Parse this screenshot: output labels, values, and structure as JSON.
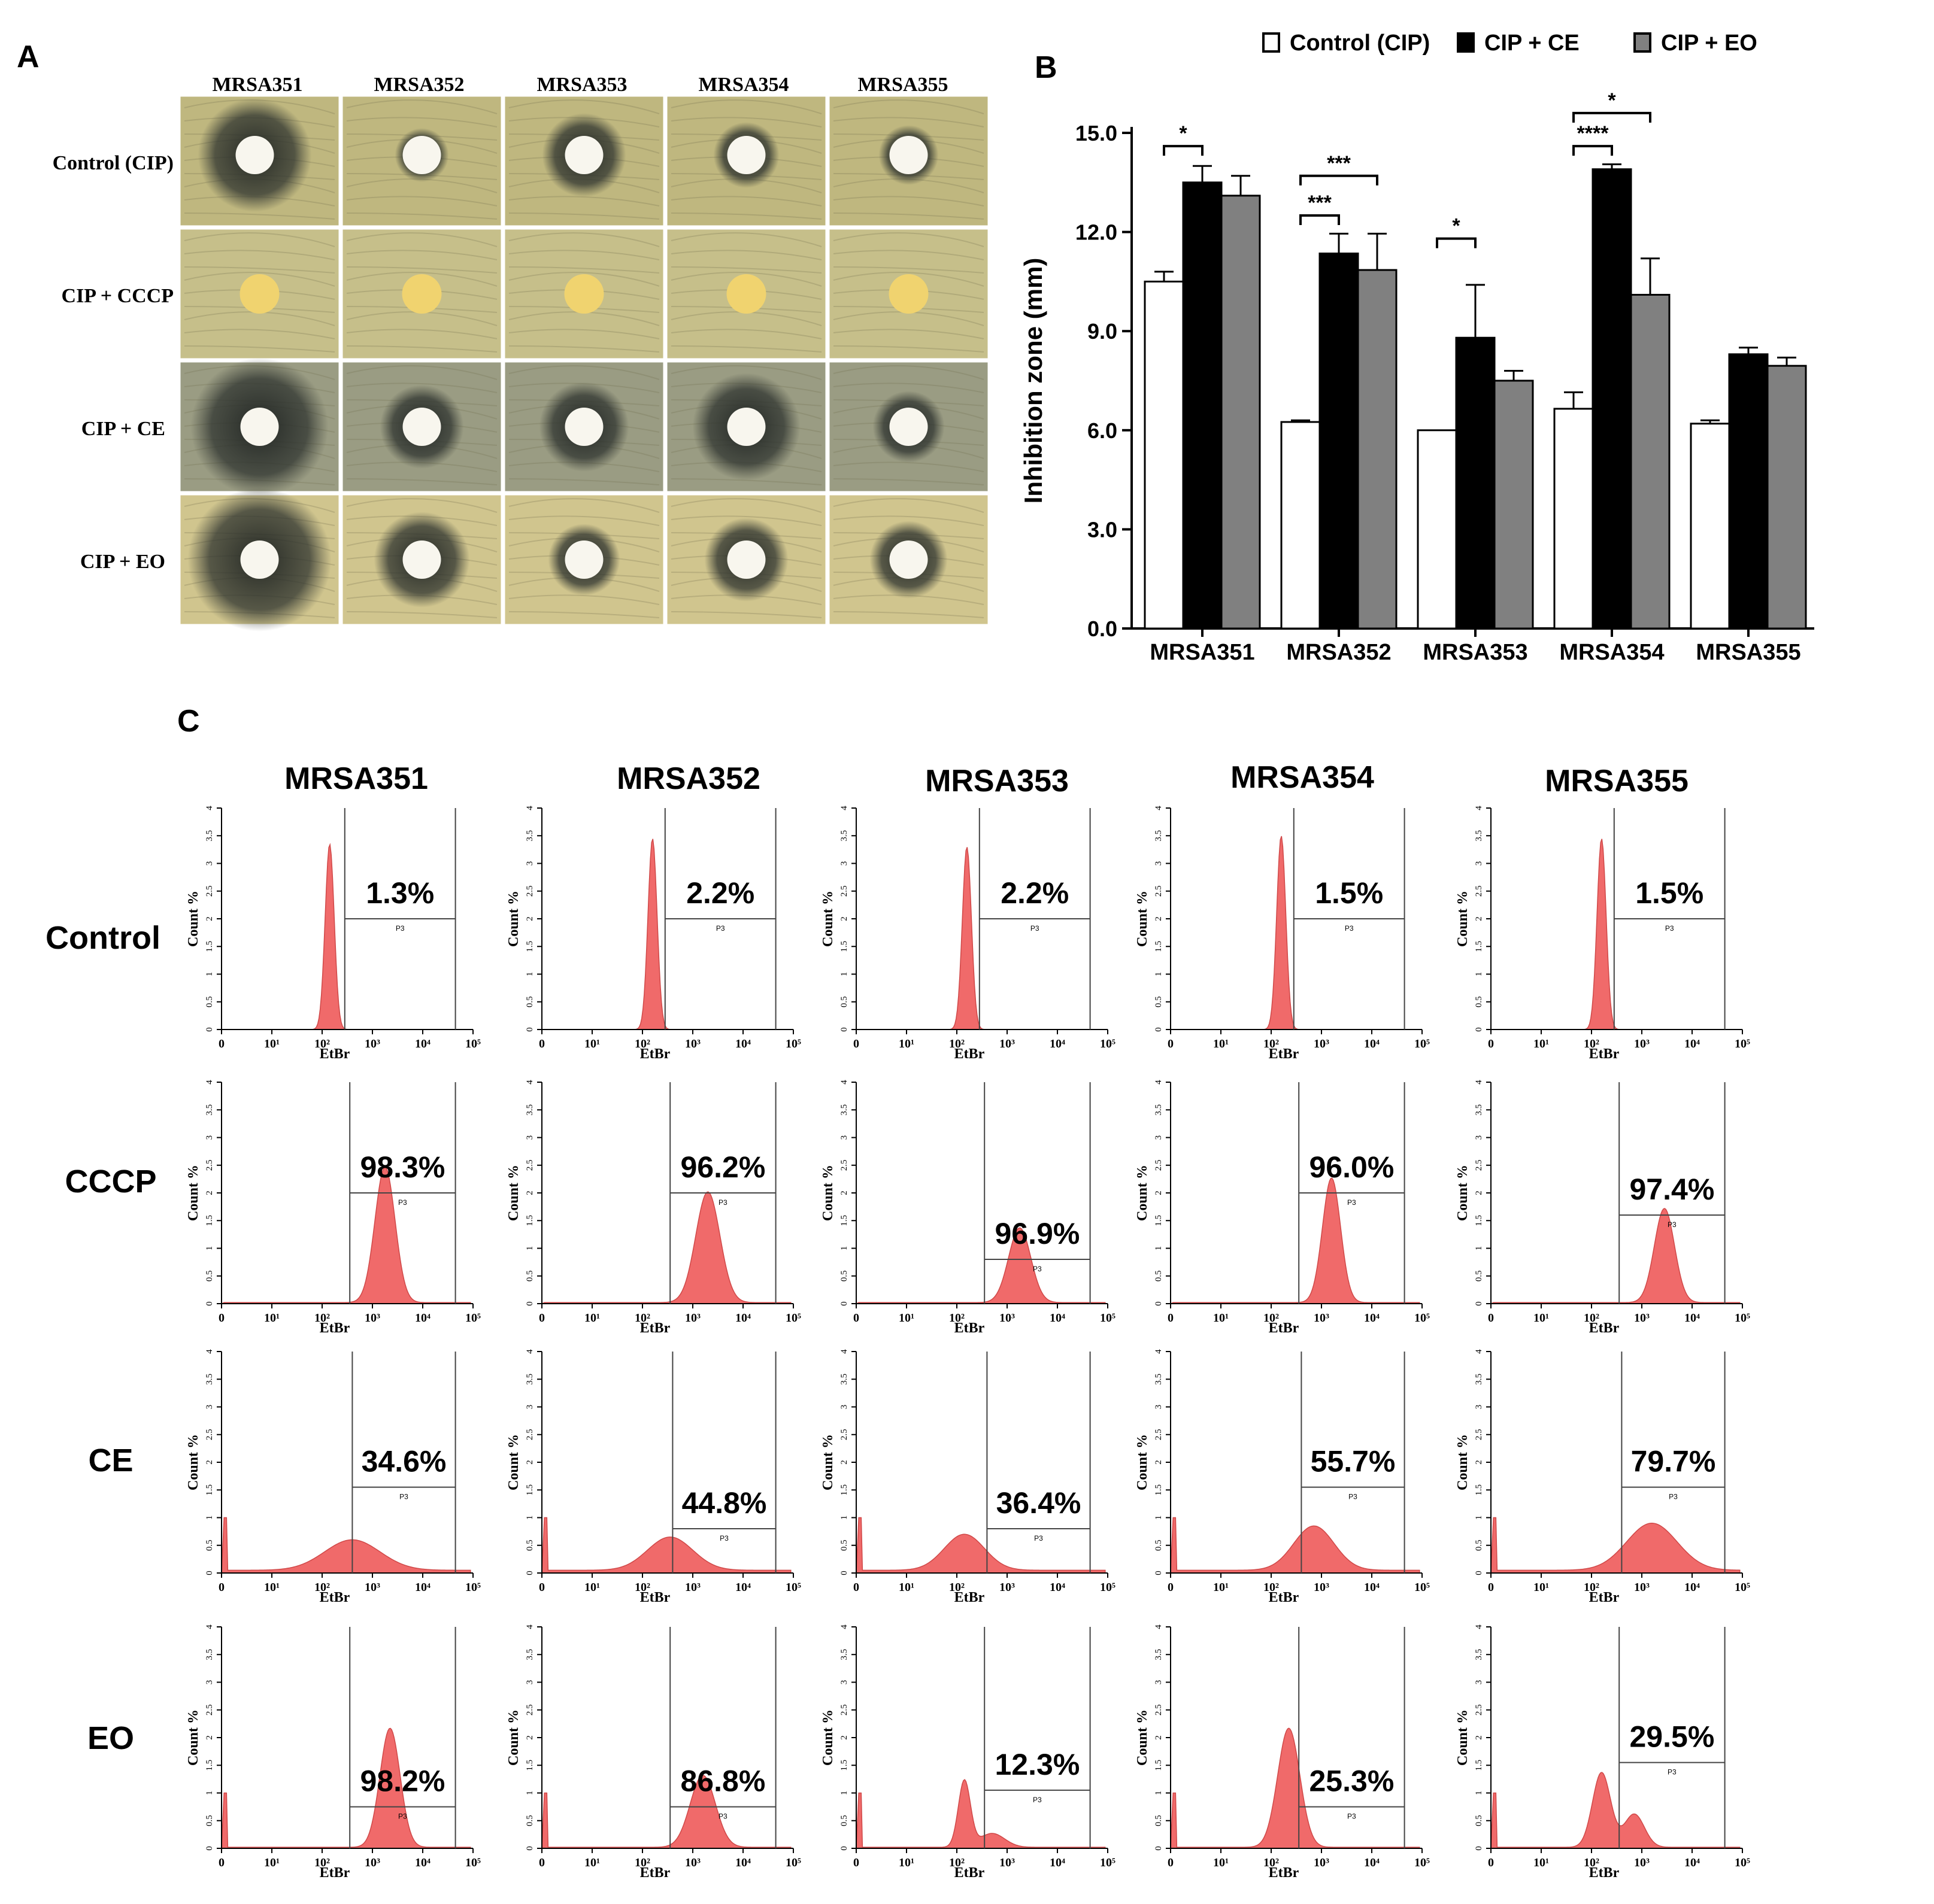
{
  "panel_letters": {
    "a": "A",
    "b": "B",
    "c": "C"
  },
  "panel_a": {
    "columns": [
      "MRSA351",
      "MRSA352",
      "MRSA353",
      "MRSA354",
      "MRSA355"
    ],
    "rows": [
      "Control (CIP)",
      "CIP + CCCP",
      "CIP + CE",
      "CIP + EO"
    ],
    "disc_colors": {
      "white": "#f8f6ee",
      "yellow": "#f0d36f"
    },
    "plate_colors": [
      "#bfb77f",
      "#c6bf8a",
      "#9a9c83",
      "#d0c58e"
    ]
  },
  "chart_data": {
    "type": "bar",
    "title": "",
    "xlabel": "",
    "ylabel": "Inhibition zone (mm)",
    "ylim": [
      0,
      15
    ],
    "yticks": [
      "0.0",
      "3.0",
      "6.0",
      "9.0",
      "12.0",
      "15.0"
    ],
    "categories": [
      "MRSA351",
      "MRSA352",
      "MRSA353",
      "MRSA354",
      "MRSA355"
    ],
    "legend_position": "top",
    "series": [
      {
        "name": "Control (CIP)",
        "color": "#ffffff",
        "values": [
          10.5,
          6.25,
          6.0,
          6.65,
          6.2
        ],
        "errors": [
          0.3,
          0.05,
          0.0,
          0.5,
          0.1
        ]
      },
      {
        "name": "CIP + CE",
        "color": "#000000",
        "values": [
          13.5,
          11.35,
          8.8,
          13.9,
          8.3
        ],
        "errors": [
          0.5,
          0.6,
          1.6,
          0.15,
          0.2
        ]
      },
      {
        "name": "CIP + EO",
        "color": "#808080",
        "values": [
          13.1,
          10.85,
          7.5,
          10.1,
          7.95
        ],
        "errors": [
          0.6,
          1.1,
          0.3,
          1.1,
          0.25
        ]
      }
    ],
    "significance": [
      {
        "category": 0,
        "from": 0,
        "to": 1,
        "label": "*",
        "y": 14.6
      },
      {
        "category": 1,
        "from": 0,
        "to": 1,
        "label": "***",
        "y": 12.5
      },
      {
        "category": 1,
        "from": 0,
        "to": 2,
        "label": "***",
        "y": 13.7
      },
      {
        "category": 2,
        "from": 0,
        "to": 1,
        "label": "*",
        "y": 11.8
      },
      {
        "category": 3,
        "from": 0,
        "to": 1,
        "label": "****",
        "y": 14.6
      },
      {
        "category": 3,
        "from": 0,
        "to": 2,
        "label": "*",
        "y": 15.6
      }
    ]
  },
  "panel_c": {
    "columns": [
      "MRSA351",
      "MRSA352",
      "MRSA353",
      "MRSA354",
      "MRSA355"
    ],
    "rows": [
      "Control",
      "CCCP",
      "CE",
      "EO"
    ],
    "xlabel": "EtBr",
    "ylabel": "Count %",
    "gate_label": "P3",
    "x_ticks": [
      "0",
      "10¹",
      "10²",
      "10³",
      "10⁴",
      "10⁵"
    ],
    "y_ticks": [
      "0",
      "0.5",
      "1",
      "1.5",
      "2",
      "2.5",
      "3",
      "3.5",
      "4"
    ],
    "color": "#f06a6a",
    "percentages": [
      [
        "1.3%",
        "2.2%",
        "2.2%",
        "1.5%",
        "1.5%"
      ],
      [
        "98.3%",
        "96.2%",
        "96.9%",
        "96.0%",
        "97.4%"
      ],
      [
        "34.6%",
        "44.8%",
        "36.4%",
        "55.7%",
        "79.7%"
      ],
      [
        "98.2%",
        "86.8%",
        "12.3%",
        "25.3%",
        "29.5%"
      ]
    ],
    "histograms": [
      [
        {
          "peaks": [
            [
              2.15,
              3.35,
              0.09
            ]
          ],
          "gate_y": 2.0,
          "floor": 0.0,
          "gate_x": 2.45
        },
        {
          "peaks": [
            [
              2.2,
              3.45,
              0.09
            ]
          ],
          "gate_y": 2.0,
          "floor": 0.0,
          "gate_x": 2.45
        },
        {
          "peaks": [
            [
              2.2,
              3.3,
              0.09
            ]
          ],
          "gate_y": 2.0,
          "floor": 0.0,
          "gate_x": 2.45
        },
        {
          "peaks": [
            [
              2.2,
              3.5,
              0.09
            ]
          ],
          "gate_y": 2.0,
          "floor": 0.0,
          "gate_x": 2.45
        },
        {
          "peaks": [
            [
              2.2,
              3.45,
              0.09
            ]
          ],
          "gate_y": 2.0,
          "floor": 0.0,
          "gate_x": 2.45
        }
      ],
      [
        {
          "peaks": [
            [
              3.25,
              2.45,
              0.2
            ]
          ],
          "gate_y": 2.0,
          "floor": 0.02,
          "gate_x": 2.55
        },
        {
          "peaks": [
            [
              3.3,
              2.0,
              0.24
            ]
          ],
          "gate_y": 2.0,
          "floor": 0.02,
          "gate_x": 2.55
        },
        {
          "peaks": [
            [
              3.25,
              1.35,
              0.22
            ]
          ],
          "gate_y": 0.8,
          "floor": 0.02,
          "gate_x": 2.55
        },
        {
          "peaks": [
            [
              3.2,
              2.25,
              0.18
            ]
          ],
          "gate_y": 2.0,
          "floor": 0.02,
          "gate_x": 2.55
        },
        {
          "peaks": [
            [
              3.45,
              1.7,
              0.2
            ]
          ],
          "gate_y": 1.6,
          "floor": 0.02,
          "gate_x": 2.55
        }
      ],
      [
        {
          "peaks": [
            [
              2.6,
              0.55,
              0.55
            ]
          ],
          "gate_y": 1.55,
          "floor": 0.05,
          "gate_x": 2.6
        },
        {
          "peaks": [
            [
              2.55,
              0.6,
              0.45
            ]
          ],
          "gate_y": 0.8,
          "floor": 0.05,
          "gate_x": 2.6
        },
        {
          "peaks": [
            [
              2.15,
              0.65,
              0.4
            ]
          ],
          "gate_y": 0.8,
          "floor": 0.05,
          "gate_x": 2.6
        },
        {
          "peaks": [
            [
              2.85,
              0.8,
              0.4
            ]
          ],
          "gate_y": 1.55,
          "floor": 0.05,
          "gate_x": 2.6
        },
        {
          "peaks": [
            [
              3.2,
              0.85,
              0.5
            ]
          ],
          "gate_y": 1.55,
          "floor": 0.05,
          "gate_x": 2.6
        }
      ],
      [
        {
          "peaks": [
            [
              3.35,
              2.15,
              0.2
            ]
          ],
          "gate_y": 0.75,
          "floor": 0.02,
          "gate_x": 2.55
        },
        {
          "peaks": [
            [
              3.2,
              1.3,
              0.25
            ]
          ],
          "gate_y": 0.75,
          "floor": 0.02,
          "gate_x": 2.55
        },
        {
          "peaks": [
            [
              2.15,
              1.2,
              0.12
            ],
            [
              2.7,
              0.25,
              0.25
            ]
          ],
          "gate_y": 1.05,
          "floor": 0.02,
          "gate_x": 2.55
        },
        {
          "peaks": [
            [
              2.35,
              2.15,
              0.22
            ]
          ],
          "gate_y": 0.75,
          "floor": 0.02,
          "gate_x": 2.55
        },
        {
          "peaks": [
            [
              2.2,
              1.35,
              0.18
            ],
            [
              2.85,
              0.6,
              0.2
            ]
          ],
          "gate_y": 1.55,
          "floor": 0.02,
          "gate_x": 2.55
        }
      ]
    ]
  }
}
